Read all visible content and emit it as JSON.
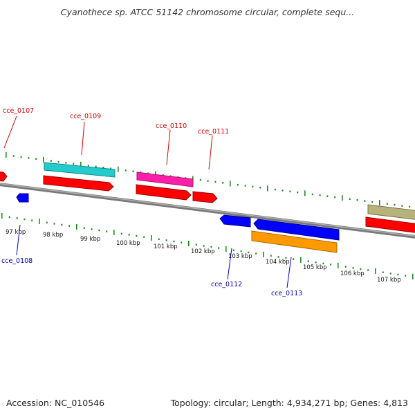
{
  "title": "Cyanothece sp. ATCC 51142 chromosome circular, complete sequ...",
  "footer": {
    "accession": "Accession: NC_010546",
    "summary": "Topology: circular; Length: 4,934,271 bp; Genes: 4,813"
  },
  "colors": {
    "forward_label": "#cc0000",
    "reverse_label": "#0000aa",
    "tick_dots": "#228822",
    "backbone": "#888888"
  },
  "scale_labels": [
    "97 kbp",
    "98 kbp",
    "99 kbp",
    "100 kbp",
    "101 kbp",
    "102 kbp",
    "103 kbp",
    "104 kbp",
    "105 kbp",
    "106 kbp",
    "107 kbp"
  ],
  "genes_forward": [
    {
      "label": "cce_0107",
      "color": "#ff0000"
    },
    {
      "label": "cce_0109",
      "color": "#ff0000",
      "feature_color": "#22cccc"
    },
    {
      "label": "cce_0110",
      "color": "#ff0000",
      "feature_color": "#ff1fa8"
    },
    {
      "label": "cce_0111",
      "color": "#ff0000"
    },
    {
      "label": "",
      "color": "#ff0000",
      "feature_color": "#b7b27a"
    }
  ],
  "genes_reverse": [
    {
      "label": "cce_0108",
      "color": "#0000ff"
    },
    {
      "label": "cce_0112",
      "color": "#0000ff"
    },
    {
      "label": "cce_0113",
      "color": "#0000ff",
      "feature_color": "#ff9900"
    }
  ]
}
